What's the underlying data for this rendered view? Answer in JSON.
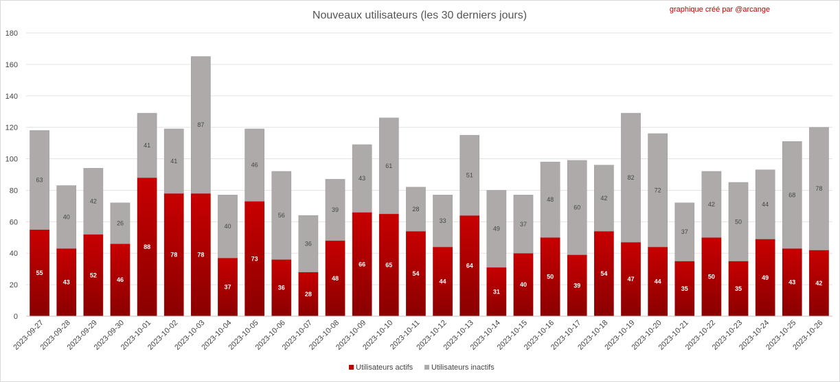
{
  "chart_data": {
    "type": "bar",
    "stacked": true,
    "title": "Nouveaux utilisateurs  (les 30 derniers  jours)",
    "credit": "graphique créé par @arcange",
    "ylim": [
      0,
      180
    ],
    "yticks": [
      0,
      20,
      40,
      60,
      80,
      100,
      120,
      140,
      160,
      180
    ],
    "grid": true,
    "legend_position": "bottom",
    "categories": [
      "2023-09-27",
      "2023-09-28",
      "2023-09-29",
      "2023-09-30",
      "2023-10-01",
      "2023-10-02",
      "2023-10-03",
      "2023-10-04",
      "2023-10-05",
      "2023-10-06",
      "2023-10-07",
      "2023-10-08",
      "2023-10-09",
      "2023-10-10",
      "2023-10-11",
      "2023-10-12",
      "2023-10-13",
      "2023-10-14",
      "2023-10-15",
      "2023-10-16",
      "2023-10-17",
      "2023-10-18",
      "2023-10-19",
      "2023-10-20",
      "2023-10-21",
      "2023-10-22",
      "2023-10-23",
      "2023-10-24",
      "2023-10-25",
      "2023-10-26"
    ],
    "series": [
      {
        "name": "Utilisateurs actifs",
        "color": "#c00000",
        "values": [
          55,
          43,
          52,
          46,
          88,
          78,
          78,
          37,
          73,
          36,
          28,
          48,
          66,
          65,
          54,
          44,
          64,
          31,
          40,
          50,
          39,
          54,
          47,
          44,
          35,
          50,
          35,
          49,
          43,
          42
        ]
      },
      {
        "name": "Utilisateurs inactifs",
        "color": "#aeaaaa",
        "values": [
          63,
          40,
          42,
          26,
          41,
          41,
          87,
          40,
          46,
          56,
          36,
          39,
          43,
          61,
          28,
          33,
          51,
          49,
          37,
          48,
          60,
          42,
          82,
          72,
          37,
          42,
          50,
          44,
          68,
          78
        ]
      }
    ]
  }
}
